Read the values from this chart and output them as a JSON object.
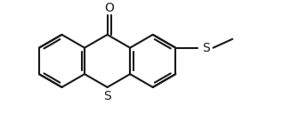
{
  "background_color": "#ffffff",
  "line_color": "#1a1a1a",
  "line_width": 1.5,
  "figsize": [
    3.18,
    1.37
  ],
  "dpi": 100,
  "xlim": [
    0,
    318
  ],
  "ylim": [
    0,
    137
  ]
}
